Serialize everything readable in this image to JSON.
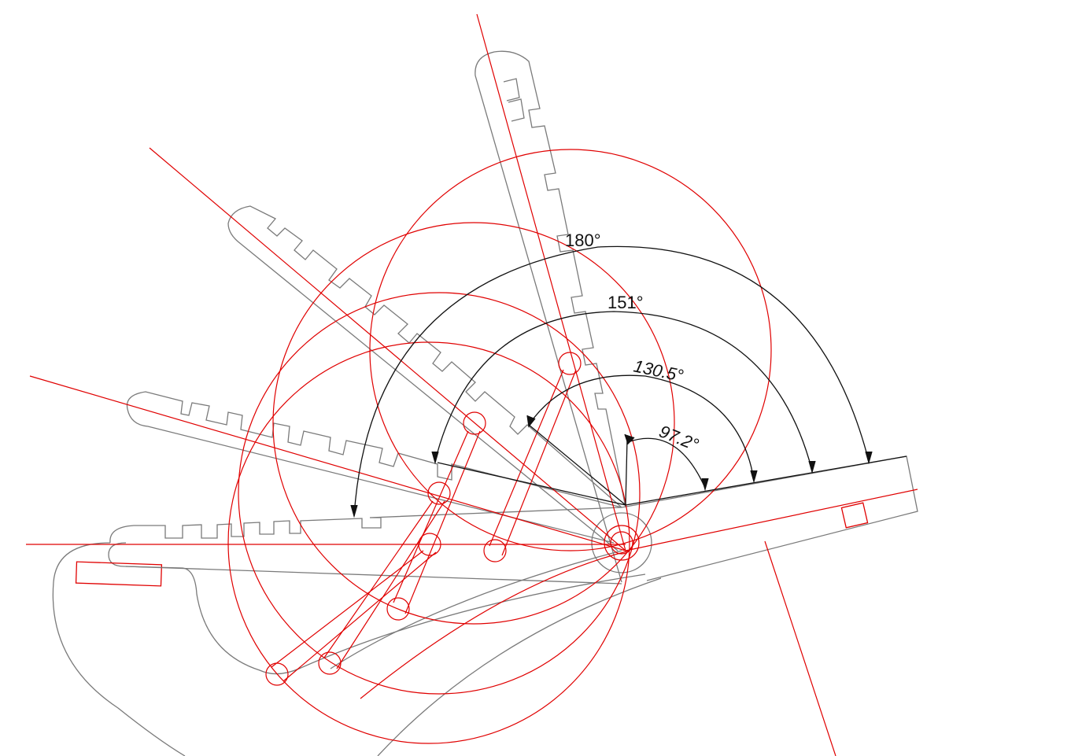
{
  "colors": {
    "outline": "#7a7a7a",
    "construction": "#e00000",
    "dimension": "#111111",
    "background": "#ffffff"
  },
  "angle_labels": {
    "a180": "180°",
    "a151": "151°",
    "a130": "130.5°",
    "a97": "97.2°"
  }
}
